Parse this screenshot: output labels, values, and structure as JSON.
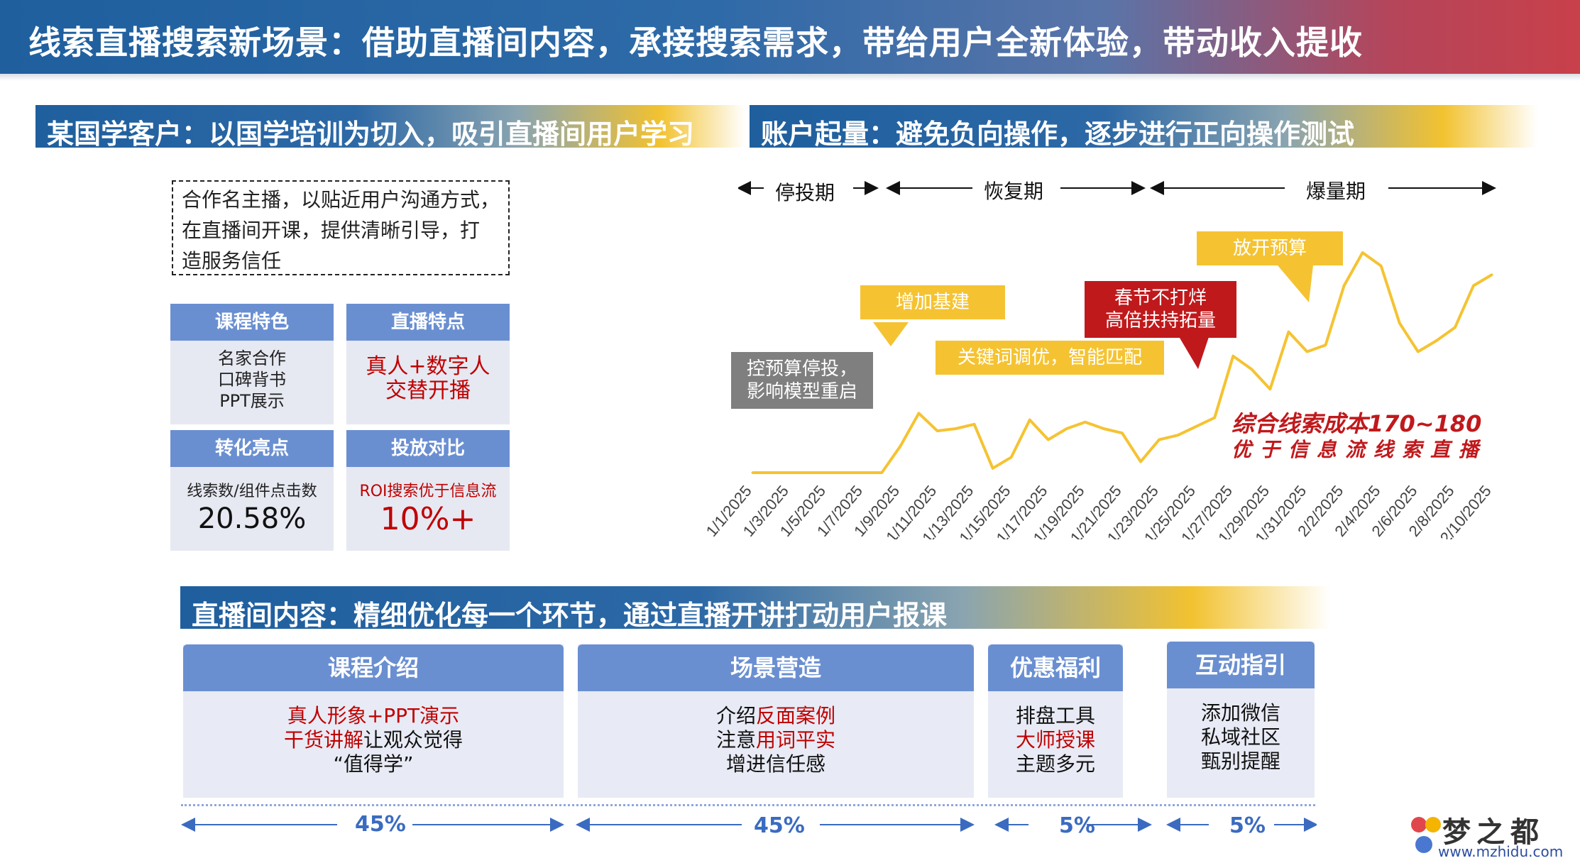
{
  "banner": {
    "title": "线索直播搜索新场景：借助直播间内容，承接搜索需求，带给用户全新体验，带动收入提收"
  },
  "left": {
    "header": "某国学客户：以国学培训为切入，吸引直播间用户学习",
    "note_lines": [
      "合作名主播，以贴近用户沟通方式，",
      "在直播间开课，提供清晰引导，打",
      "造服务信任"
    ],
    "tiles": [
      {
        "title": "课程特色",
        "lines": [
          "名家合作",
          "口碑背书",
          "PPT展示"
        ]
      },
      {
        "title": "直播特点",
        "lines": [
          "真人+数字人",
          "交替开播"
        ]
      },
      {
        "title": "转化亮点",
        "label": "线索数/组件点击数",
        "value": "20.58%"
      },
      {
        "title": "投放对比",
        "label": "ROI搜索优于信息流",
        "value": "10%+"
      }
    ]
  },
  "right": {
    "header": "账户起量：避免负向操作，逐步进行正向操作测试",
    "phases": [
      "停投期",
      "恢复期",
      "爆量期"
    ],
    "callouts": {
      "pause": [
        "控预算停投，",
        "影响模型重启"
      ],
      "add_base": "增加基建",
      "keyword": "关键词调优，智能匹配",
      "festival": [
        "春节不打烊",
        "高倍扶持拓量"
      ],
      "budget": "放开预算"
    },
    "cost_note": [
      "综合线索成本170~180",
      "优于信息流线索直播"
    ]
  },
  "chart_data": {
    "type": "line",
    "x": [
      "1/1/2025",
      "1/2/2025",
      "1/3/2025",
      "1/4/2025",
      "1/5/2025",
      "1/6/2025",
      "1/7/2025",
      "1/8/2025",
      "1/9/2025",
      "1/10/2025",
      "1/11/2025",
      "1/12/2025",
      "1/13/2025",
      "1/14/2025",
      "1/15/2025",
      "1/16/2025",
      "1/17/2025",
      "1/18/2025",
      "1/19/2025",
      "1/20/2025",
      "1/21/2025",
      "1/22/2025",
      "1/23/2025",
      "1/24/2025",
      "1/25/2025",
      "1/26/2025",
      "1/27/2025",
      "1/28/2025",
      "1/29/2025",
      "1/30/2025",
      "1/31/2025",
      "2/1/2025",
      "2/2/2025",
      "2/3/2025",
      "2/4/2025",
      "2/5/2025",
      "2/6/2025",
      "2/7/2025",
      "2/8/2025",
      "2/9/2025",
      "2/10/2025"
    ],
    "x_tick_labels": [
      "1/1/2025",
      "1/3/2025",
      "1/5/2025",
      "1/7/2025",
      "1/9/2025",
      "1/11/2025",
      "1/13/2025",
      "1/15/2025",
      "1/17/2025",
      "1/19/2025",
      "1/21/2025",
      "1/23/2025",
      "1/25/2025",
      "1/27/2025",
      "1/29/2025",
      "1/31/2025",
      "2/2/2025",
      "2/4/2025",
      "2/6/2025",
      "2/8/2025",
      "2/10/2025"
    ],
    "series": [
      {
        "values": [
          0,
          0,
          0,
          0,
          0,
          0,
          0,
          0,
          12,
          27,
          19,
          20,
          22,
          2,
          7,
          24,
          15,
          20,
          23,
          20,
          18,
          5,
          15,
          17,
          21,
          25,
          53,
          47,
          38,
          64,
          55,
          58,
          85,
          100,
          94,
          68,
          55,
          60,
          66,
          85,
          90
        ]
      }
    ],
    "ylim": [
      0,
      100
    ],
    "grid": false,
    "line_color": "#f5c332"
  },
  "bottom": {
    "header": "直播间内容：精细优化每一个环节，通过直播开讲打动用户报课",
    "cards": [
      {
        "title": "课程介绍",
        "lines": [
          [
            {
              "t": "真人形象+PPT演示",
              "red": true
            }
          ],
          [
            {
              "t": "干货讲解",
              "red": true
            },
            {
              "t": "让观众觉得",
              "red": false
            }
          ],
          [
            {
              "t": "“值得学”",
              "red": false
            }
          ]
        ]
      },
      {
        "title": "场景营造",
        "lines": [
          [
            {
              "t": "介绍",
              "red": false
            },
            {
              "t": "反面案例",
              "red": true
            }
          ],
          [
            {
              "t": "注意",
              "red": false
            },
            {
              "t": "用词平实",
              "red": true
            }
          ],
          [
            {
              "t": "增进信任感",
              "red": false
            }
          ]
        ]
      },
      {
        "title": "优惠福利",
        "lines": [
          [
            {
              "t": "排盘工具",
              "red": false
            }
          ],
          [
            {
              "t": "大师授课",
              "red": true
            }
          ],
          [
            {
              "t": "主题多元",
              "red": false
            }
          ]
        ]
      },
      {
        "title": "互动指引",
        "lines": [
          [
            {
              "t": "添加微信",
              "red": false
            }
          ],
          [
            {
              "t": "私域社区",
              "red": false
            }
          ],
          [
            {
              "t": "甄别提醒",
              "red": false
            }
          ]
        ]
      }
    ],
    "percents": [
      "45%",
      "45%",
      "5%",
      "5%"
    ]
  },
  "watermark": {
    "text": "梦之都",
    "url": "www.mzhidu.com"
  }
}
